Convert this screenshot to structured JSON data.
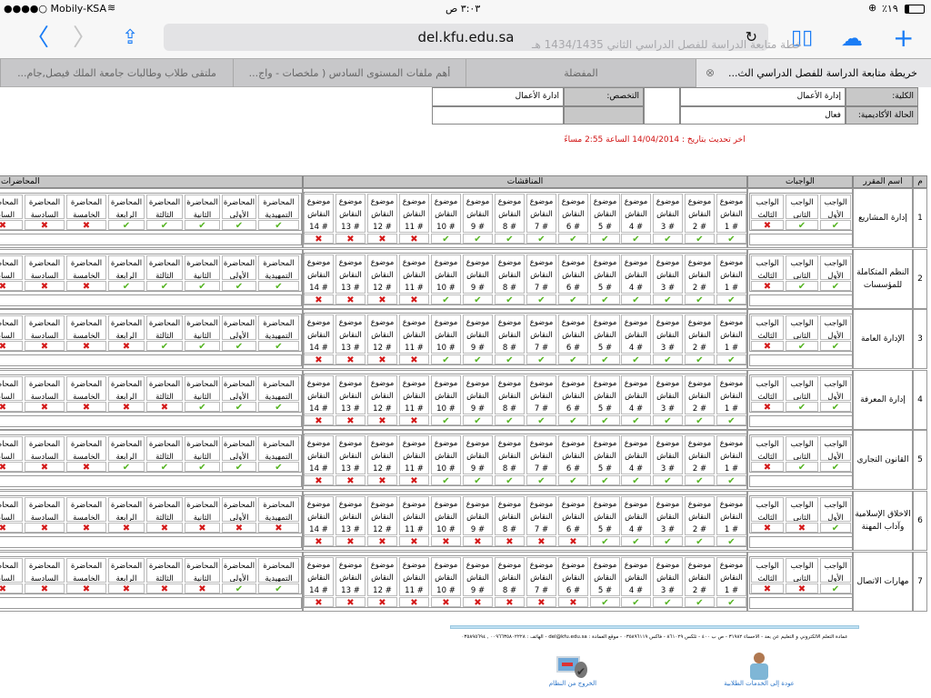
{
  "status_bar": {
    "carrier": "●●●●○ Mobily-KSA",
    "time": "٣:٠٣ ص",
    "battery": "٪١٩"
  },
  "browser": {
    "url": "del.kfu.edu.sa",
    "ghost_title": "خطة متابعة الدراسة للفصل الدراسي الثاني 1434/1435 هـ",
    "tabs": [
      {
        "label": "خريطة متابعة الدراسة للفصل الدراسي الث...",
        "active": true
      },
      {
        "label": "المفضلة",
        "active": false
      },
      {
        "label": "أهم ملفات المستوى السادس ( ملخصات - واج...",
        "active": false
      },
      {
        "label": "ملتقى طلاب وطالبات جامعة الملك فيصل,جام...",
        "active": false
      }
    ]
  },
  "student_info": {
    "college_label": "الكلية:",
    "college_value": "إدارة الأعمال",
    "status_label": "الحالة الأكاديمية:",
    "status_value": "فعال",
    "major_label": "التخصص:",
    "major_value": "ادارة الأعمال"
  },
  "last_update": "اخر تحديث بتاريخ : 14/04/2014 الساعة 2:55 مساءً",
  "table": {
    "headers": {
      "number": "م",
      "course": "اسم المقرر",
      "assignments": "الواجبات",
      "discussions": "المناقشات",
      "lectures": "المحاضرات"
    },
    "assignment_labels": [
      [
        "الواجب",
        "الأول"
      ],
      [
        "الواجب",
        "الثاني"
      ],
      [
        "الواجب",
        "الثالث"
      ]
    ],
    "discussion_label": [
      "موضوع",
      "النقاش"
    ],
    "discussion_numbers": [
      "# 1",
      "# 2",
      "# 3",
      "# 4",
      "# 5",
      "# 6",
      "# 7",
      "# 8",
      "# 9",
      "# 10",
      "# 11",
      "# 12",
      "# 13",
      "# 14"
    ],
    "lecture_labels": [
      [
        "المحاضرة",
        "التمهيدية"
      ],
      [
        "المحاضرة",
        "الأولى"
      ],
      [
        "المحاضرة",
        "الثانية"
      ],
      [
        "المحاضرة",
        "الثالثة"
      ],
      [
        "المحاضرة",
        "الرابعة"
      ],
      [
        "المحاضرة",
        "الخامسة"
      ],
      [
        "المحاضرة",
        "السادسة"
      ],
      [
        "المحاضرة",
        "السابعة"
      ]
    ],
    "status_colors": {
      "done": "#56b423",
      "missing": "#d41a1a"
    },
    "courses": [
      {
        "number": "1",
        "name": "إدارة المشاريع",
        "assignments": [
          1,
          1,
          0
        ],
        "discussions": [
          1,
          1,
          1,
          1,
          1,
          1,
          1,
          1,
          1,
          1,
          0,
          0,
          0,
          0
        ],
        "lectures": [
          1,
          1,
          1,
          1,
          1,
          0,
          0,
          0
        ]
      },
      {
        "number": "2",
        "name": "النظم المتكاملة للمؤسسات",
        "assignments": [
          1,
          1,
          0
        ],
        "discussions": [
          1,
          1,
          1,
          1,
          1,
          1,
          1,
          1,
          1,
          1,
          0,
          0,
          0,
          0
        ],
        "lectures": [
          1,
          1,
          1,
          1,
          1,
          0,
          0,
          0
        ]
      },
      {
        "number": "3",
        "name": "الإدارة العامة",
        "assignments": [
          1,
          1,
          0
        ],
        "discussions": [
          1,
          1,
          1,
          1,
          1,
          1,
          1,
          1,
          1,
          1,
          0,
          0,
          0,
          0
        ],
        "lectures": [
          1,
          1,
          1,
          1,
          0,
          0,
          0,
          0
        ]
      },
      {
        "number": "4",
        "name": "إدارة المعرفة",
        "assignments": [
          1,
          1,
          0
        ],
        "discussions": [
          1,
          1,
          1,
          1,
          1,
          1,
          1,
          1,
          1,
          1,
          0,
          0,
          0,
          0
        ],
        "lectures": [
          1,
          1,
          1,
          0,
          0,
          0,
          0,
          0
        ]
      },
      {
        "number": "5",
        "name": "القانون التجاري",
        "assignments": [
          1,
          1,
          0
        ],
        "discussions": [
          1,
          1,
          1,
          1,
          1,
          1,
          1,
          1,
          1,
          1,
          0,
          0,
          0,
          0
        ],
        "lectures": [
          1,
          1,
          1,
          1,
          1,
          0,
          0,
          0
        ]
      },
      {
        "number": "6",
        "name": "الاخلاق الإسلامية وآداب المهنة",
        "assignments": [
          1,
          0,
          0
        ],
        "discussions": [
          1,
          1,
          1,
          1,
          1,
          0,
          0,
          0,
          0,
          0,
          0,
          0,
          0,
          0
        ],
        "lectures": [
          0,
          0,
          0,
          0,
          0,
          0,
          0,
          0
        ]
      },
      {
        "number": "7",
        "name": "مهارات الاتصال",
        "assignments": [
          1,
          0,
          0
        ],
        "discussions": [
          1,
          1,
          1,
          1,
          1,
          0,
          0,
          0,
          0,
          0,
          0,
          0,
          0,
          0
        ],
        "lectures": [
          1,
          1,
          0,
          0,
          0,
          0,
          0,
          0
        ]
      }
    ]
  },
  "footer": {
    "contact": "عمادة التعلم الالكتروني و التعليم عن بعد - الأحساء ٣١٩٨٢ - ص ب ٤٠٠ - تلكس ٨٦١٠٢٩ - فاكس ٠٣٥٨٩٦١١٩ - موقع العمادة : del@kfu.edu.sa - الهاتف : ٠٠٩٦٦٣٥٨٠٢٢٢٨ , ٠٣٥٨٩٥٦٩٤",
    "logout_label": "الخروج من النظام",
    "back_label": "عودة إلى الخدمات الطلابية"
  }
}
